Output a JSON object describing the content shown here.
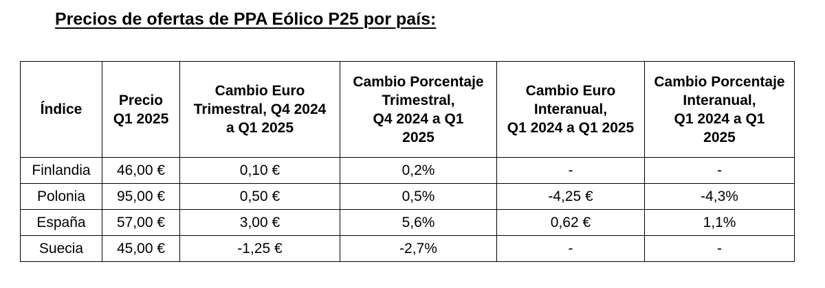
{
  "title": "Precios de ofertas de PPA Eólico P25 por país:",
  "table": {
    "headers": [
      "Índice",
      "Precio\nQ1 2025",
      "Cambio Euro\nTrimestral, Q4 2024\na Q1 2025",
      "Cambio Porcentaje\nTrimestral,\nQ4 2024 a Q1\n2025",
      "Cambio Euro\nInteranual,\nQ1 2024 a Q1 2025",
      "Cambio Porcentaje\nInteranual,\nQ1 2024 a Q1\n2025"
    ],
    "rows": [
      [
        "Finlandia",
        "46,00 €",
        "0,10 €",
        "0,2%",
        "-",
        "-"
      ],
      [
        "Polonia",
        "95,00 €",
        "0,50 €",
        "0,5%",
        "-4,25 €",
        "-4,3%"
      ],
      [
        "España",
        "57,00 €",
        "3,00 €",
        "5,6%",
        "0,62 €",
        "1,1%"
      ],
      [
        "Suecia",
        "45,00 €",
        "-1,25 €",
        "-2,7%",
        "-",
        "-"
      ]
    ]
  }
}
